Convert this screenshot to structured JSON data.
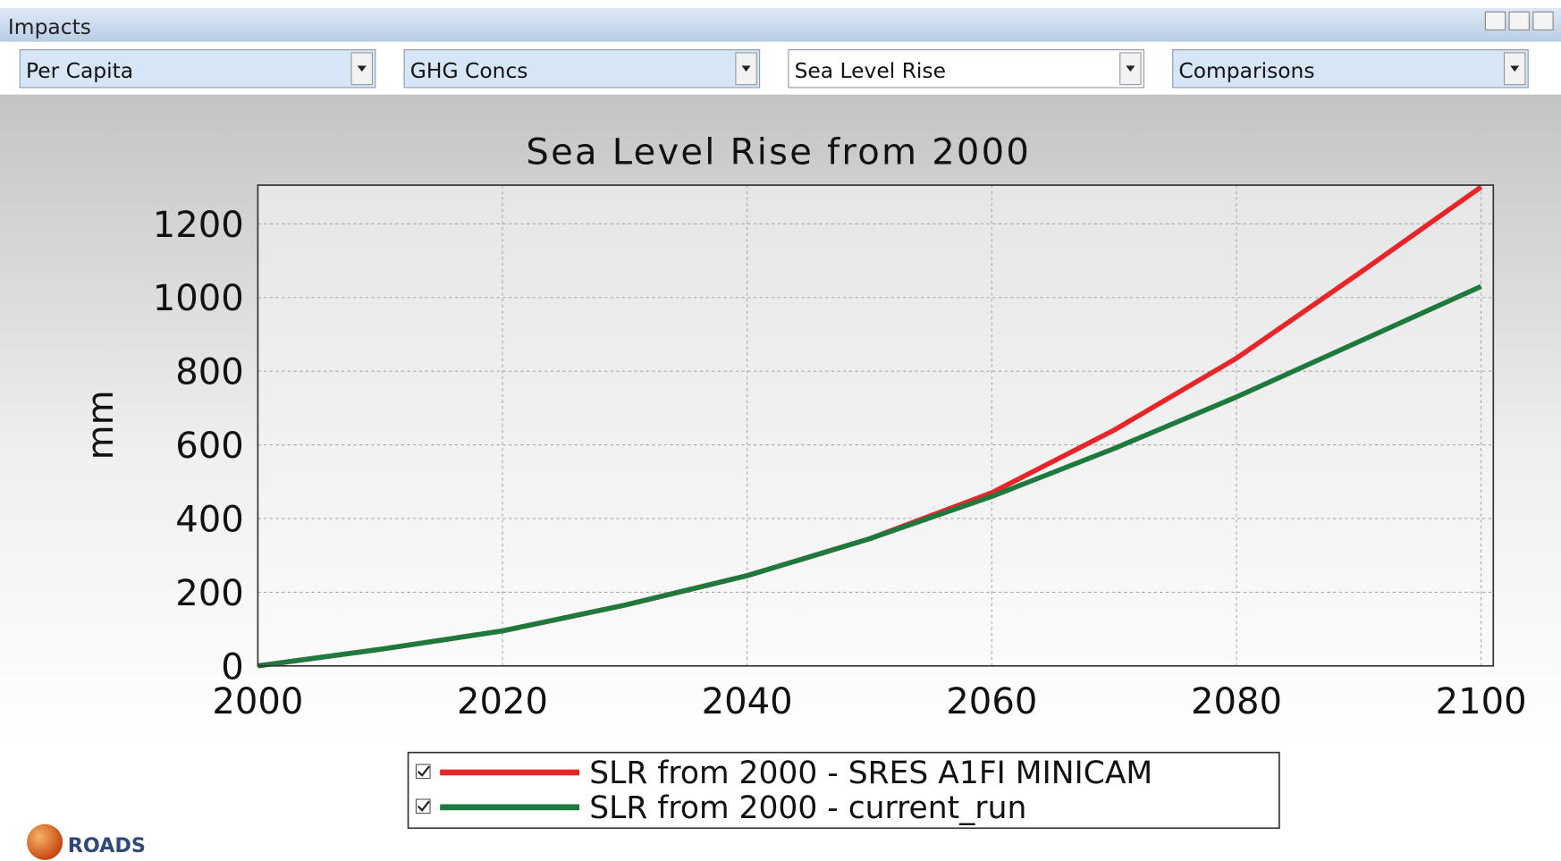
{
  "window": {
    "title": "Impacts"
  },
  "dropdowns": [
    "Per Capita",
    "GHG Concs",
    "Sea Level Rise",
    "Comparisons"
  ],
  "logo": "ROADS",
  "chart_data": {
    "type": "line",
    "title": "Sea Level Rise from 2000",
    "y_label": "mm",
    "x": [
      2000,
      2010,
      2020,
      2030,
      2040,
      2050,
      2060,
      2070,
      2080,
      2090,
      2100
    ],
    "series": [
      {
        "name": "SLR from 2000 - SRES A1FI MINICAM",
        "color": "#e8262a",
        "values": [
          0,
          45,
          95,
          165,
          245,
          345,
          470,
          640,
          835,
          1065,
          1300
        ]
      },
      {
        "name": "SLR from 2000 - current_run",
        "color": "#1e7a3c",
        "values": [
          0,
          45,
          95,
          165,
          245,
          345,
          460,
          590,
          730,
          880,
          1030
        ]
      }
    ],
    "xlim": [
      2000,
      2101
    ],
    "ylim": [
      0,
      1305
    ],
    "xticks": [
      2000,
      2020,
      2040,
      2060,
      2080,
      2100
    ],
    "yticks": [
      0,
      200,
      400,
      600,
      800,
      1000,
      1200
    ],
    "grid": true,
    "legend": "bottom"
  }
}
